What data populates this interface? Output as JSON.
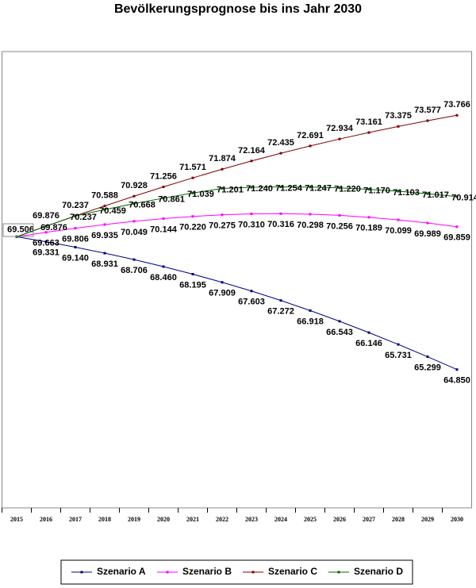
{
  "chart_data": {
    "type": "line",
    "title": "Bevölkerungsprognose bis ins Jahr 2030",
    "categories": [
      "2015",
      "2016",
      "2017",
      "2018",
      "2019",
      "2020",
      "2021",
      "2022",
      "2023",
      "2024",
      "2025",
      "2026",
      "2027",
      "2028",
      "2029",
      "2030"
    ],
    "ylim": [
      60,
      76
    ],
    "series": [
      {
        "name": "Szenario A",
        "color": "#000080",
        "values": [
          69.506,
          69.331,
          69.14,
          68.931,
          68.706,
          68.46,
          68.195,
          67.909,
          67.603,
          67.272,
          66.918,
          66.543,
          66.146,
          65.731,
          65.299,
          64.85
        ],
        "value_labels": [
          "69.506",
          "69.331",
          "69.140",
          "68.931",
          "68.706",
          "68.460",
          "68.195",
          "67.909",
          "67.603",
          "67.272",
          "66.918",
          "66.543",
          "66.146",
          "65.731",
          "65.299",
          "64.850"
        ]
      },
      {
        "name": "Szenario B",
        "color": "#ff00ff",
        "values": [
          69.506,
          69.663,
          69.806,
          69.935,
          70.049,
          70.144,
          70.22,
          70.275,
          70.31,
          70.316,
          70.298,
          70.256,
          70.189,
          70.099,
          69.989,
          69.859
        ],
        "value_labels": [
          null,
          "69.663",
          "69.806",
          "69.935",
          "70.049",
          "70.144",
          "70.220",
          "70.275",
          "70.310",
          "70.316",
          "70.298",
          "70.256",
          "70.189",
          "70.099",
          "69.989",
          "69.859"
        ]
      },
      {
        "name": "Szenario C",
        "color": "#800000",
        "values": [
          69.506,
          69.876,
          70.237,
          70.588,
          70.928,
          71.256,
          71.571,
          71.874,
          72.164,
          72.435,
          72.691,
          72.934,
          73.161,
          73.375,
          73.577,
          73.766
        ],
        "value_labels": [
          null,
          "69.876",
          "70.237",
          "70.588",
          "70.928",
          "71.256",
          "71.571",
          "71.874",
          "72.164",
          "72.435",
          "72.691",
          "72.934",
          "73.161",
          "73.375",
          "73.577",
          "73.766"
        ]
      },
      {
        "name": "Szenario D",
        "color": "#006400",
        "values": [
          69.506,
          69.876,
          70.237,
          70.459,
          70.668,
          70.861,
          71.039,
          71.201,
          71.24,
          71.254,
          71.247,
          71.22,
          71.17,
          71.103,
          71.017,
          70.914
        ],
        "value_labels": [
          null,
          "69.876",
          "70.237",
          "70.459",
          "70.668",
          "70.861",
          "71.039",
          "71.201",
          "71.240",
          "71.254",
          "71.247",
          "71.220",
          "71.170",
          "71.103",
          "71.017",
          "70.914"
        ]
      }
    ]
  }
}
